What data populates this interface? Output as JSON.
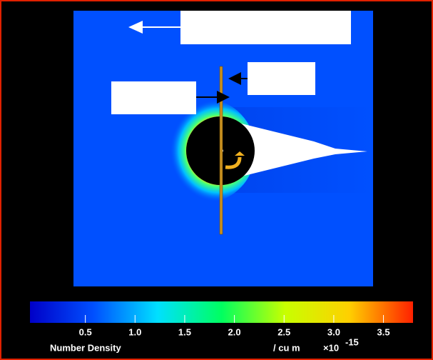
{
  "chart_data": {
    "type": "colormap",
    "colorbar_label": "Number Density",
    "unit": "/ cu m",
    "multiplier": "×10",
    "exponent": "-15",
    "clim": [
      0,
      3.8
    ],
    "cticks": [
      {
        "value": 0.5,
        "label": "0.5"
      },
      {
        "value": 1.0,
        "label": "1.0"
      },
      {
        "value": 1.5,
        "label": "1.5"
      },
      {
        "value": 2.0,
        "label": "2.0"
      },
      {
        "value": 2.5,
        "label": "2.5"
      },
      {
        "value": 3.0,
        "label": "3.0"
      },
      {
        "value": 3.5,
        "label": "3.5"
      }
    ],
    "colors": [
      "#0000c8",
      "#0050ff",
      "#00e0ff",
      "#00ff60",
      "#c8ff00",
      "#ffd000",
      "#ff2000"
    ]
  }
}
